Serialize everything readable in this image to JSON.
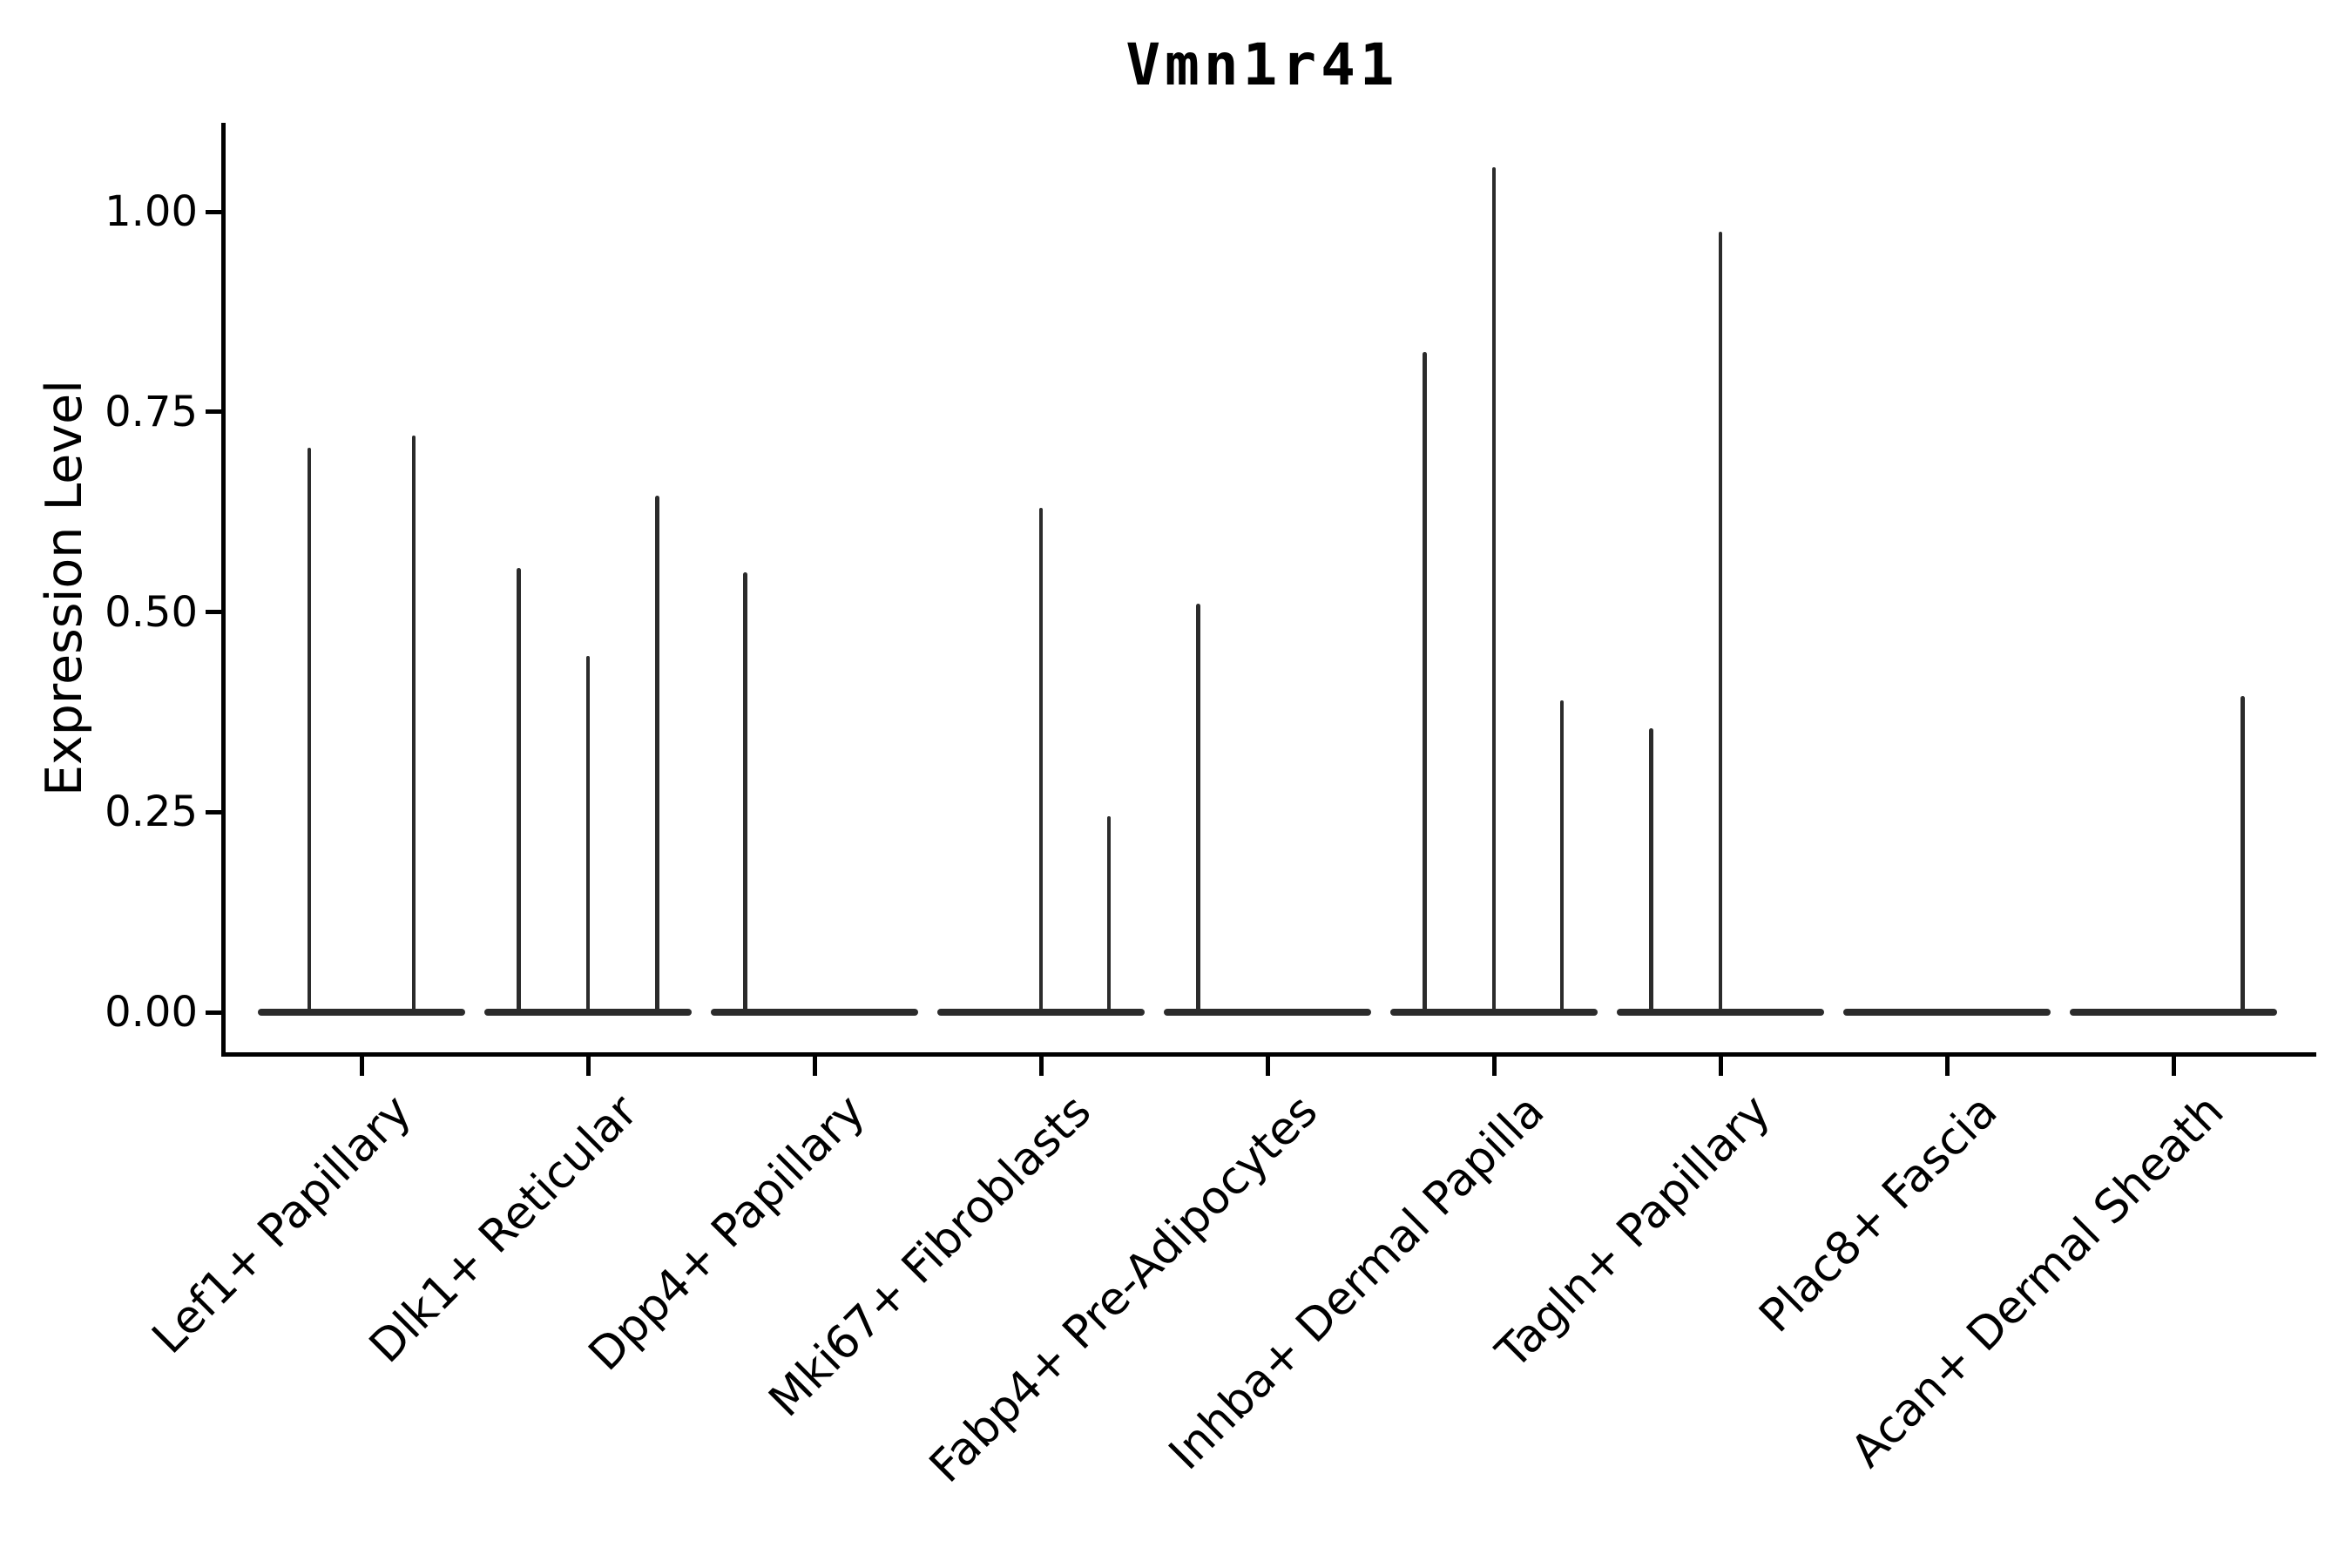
{
  "title": "Vmn1r41",
  "y_axis": {
    "label": "Expression Level",
    "tick_labels": [
      "1.00",
      "0.75",
      "0.50",
      "0.25",
      "0.00"
    ],
    "tick_values": [
      1.0,
      0.75,
      0.5,
      0.25,
      0.0
    ],
    "range_min": -0.05,
    "range_max": 1.11
  },
  "x_axis": {
    "categories": [
      "Lef1+ Papillary",
      "Dlk1+ Reticular",
      "Dpp4+ Papillary",
      "Mki67+ Fibroblasts",
      "Fabp4+ Pre-Adipocytes",
      "Inhba+ Dermal Papilla",
      "Tagln+ Papillary",
      "Plac8+ Fascia",
      "Acan+ Dermal Sheath"
    ]
  },
  "style": {
    "ink_color": "#2b2b2b",
    "spine_color": "#000000",
    "background": "#ffffff"
  },
  "chart_data": {
    "type": "violin",
    "title": "Vmn1r41",
    "xlabel": "",
    "ylabel": "Expression Level",
    "ylim": [
      -0.05,
      1.11
    ],
    "yticks": [
      0.0,
      0.25,
      0.5,
      0.75,
      1.0
    ],
    "grid": false,
    "legend_position": "none",
    "violin_halfwidth_frac": 0.458,
    "categories": [
      "Lef1+ Papillary",
      "Dlk1+ Reticular",
      "Dpp4+ Papillary",
      "Mki67+ Fibroblasts",
      "Fabp4+ Pre-Adipocytes",
      "Inhba+ Dermal Papilla",
      "Tagln+ Papillary",
      "Plac8+ Fascia",
      "Acan+ Dermal Sheath"
    ],
    "violins": [
      {
        "category": "Lef1+ Papillary",
        "zero_base": true,
        "peaks": [
          {
            "offset": -0.23,
            "max": 0.705
          },
          {
            "offset": 0.23,
            "max": 0.72
          }
        ]
      },
      {
        "category": "Dlk1+ Reticular",
        "zero_base": true,
        "peaks": [
          {
            "offset": -0.305,
            "max": 0.555
          },
          {
            "offset": 0.0,
            "max": 0.445
          },
          {
            "offset": 0.305,
            "max": 0.645
          }
        ]
      },
      {
        "category": "Dpp4+ Papillary",
        "zero_base": true,
        "peaks": [
          {
            "offset": -0.305,
            "max": 0.55
          }
        ]
      },
      {
        "category": "Mki67+ Fibroblasts",
        "zero_base": true,
        "peaks": [
          {
            "offset": 0.0,
            "max": 0.63
          },
          {
            "offset": 0.3,
            "max": 0.245
          }
        ]
      },
      {
        "category": "Fabp4+ Pre-Adipocytes",
        "zero_base": true,
        "peaks": [
          {
            "offset": -0.305,
            "max": 0.51
          }
        ]
      },
      {
        "category": "Inhba+ Dermal Papilla",
        "zero_base": true,
        "peaks": [
          {
            "offset": -0.305,
            "max": 0.825
          },
          {
            "offset": 0.0,
            "max": 1.055
          },
          {
            "offset": 0.3,
            "max": 0.39
          }
        ]
      },
      {
        "category": "Tagln+ Papillary",
        "zero_base": true,
        "peaks": [
          {
            "offset": -0.305,
            "max": 0.355
          },
          {
            "offset": 0.0,
            "max": 0.975
          }
        ]
      },
      {
        "category": "Plac8+ Fascia",
        "zero_base": true,
        "peaks": []
      },
      {
        "category": "Acan+ Dermal Sheath",
        "zero_base": true,
        "peaks": [
          {
            "offset": 0.305,
            "max": 0.395
          }
        ]
      }
    ]
  }
}
